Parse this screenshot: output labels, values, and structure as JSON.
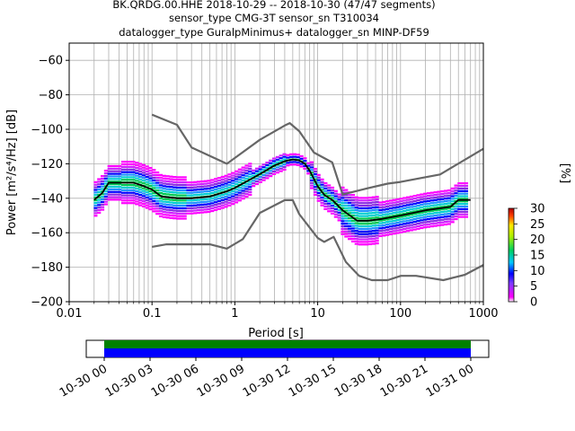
{
  "chart_data": {
    "type": "heatmap",
    "title_lines": [
      "BK.QRDG.00.HHE   2018-10-29 -- 2018-10-30  (47/47 segments)",
      "sensor_type CMG-3T sensor_sn T310034",
      "datalogger_type GuralpMinimus+ datalogger_sn MINP-DF59"
    ],
    "xlabel": "Period [s]",
    "ylabel": "Power [m²/s⁴/Hz] [dB]",
    "xscale": "log",
    "xlim": [
      0.01,
      1000
    ],
    "ylim": [
      -200,
      -50
    ],
    "xticks": [
      0.01,
      0.1,
      1,
      10,
      100,
      1000
    ],
    "xtick_labels": [
      "0.01",
      "0.1",
      "1",
      "10",
      "100",
      "1000"
    ],
    "yticks": [
      -200,
      -180,
      -160,
      -140,
      -120,
      -100,
      -80,
      -60
    ],
    "ytick_labels": [
      "−200",
      "−180",
      "−160",
      "−140",
      "−120",
      "−100",
      "−80",
      "−60"
    ],
    "grid": true,
    "colorbar": {
      "label": "[%]",
      "range": [
        0,
        30
      ],
      "ticks": [
        0,
        5,
        10,
        15,
        20,
        25,
        30
      ],
      "tick_labels": [
        "0",
        "5",
        "10",
        "15",
        "20",
        "25",
        "30"
      ]
    },
    "series": [
      {
        "name": "",
        "color": "#666666",
        "x": [
          0.1,
          0.2,
          0.3,
          0.8,
          2,
          4,
          4.6,
          6,
          9,
          15,
          20,
          40,
          70,
          100,
          300,
          1000
        ],
        "y": [
          -91.5,
          -97.4,
          -110.5,
          -120,
          -106.1,
          -97.8,
          -96.4,
          -101.1,
          -113.5,
          -119.2,
          -137.8,
          -134.2,
          -131.5,
          -130.5,
          -126.2,
          -111.3
        ]
      },
      {
        "name": "",
        "color": "#666666",
        "x": [
          0.1,
          0.15,
          0.2,
          0.5,
          0.8,
          1.25,
          2,
          4,
          5,
          6,
          10,
          12,
          15.6,
          21.9,
          31.6,
          45,
          70,
          101,
          154,
          328,
          600,
          1000
        ],
        "y": [
          -168.2,
          -166.7,
          -166.7,
          -166.7,
          -169.2,
          -163.7,
          -148.5,
          -141.1,
          -141.1,
          -149.2,
          -163,
          -165.3,
          -162.4,
          -177,
          -185,
          -187.5,
          -187.5,
          -185,
          -185,
          -187.5,
          -184.4,
          -178.7
        ]
      },
      {
        "name": "",
        "color": "#000000",
        "x": [
          0.02,
          0.025,
          0.03,
          0.04,
          0.06,
          0.08,
          0.1,
          0.13,
          0.2,
          0.3,
          0.5,
          0.8,
          1,
          2,
          3,
          4,
          5,
          6,
          7,
          8,
          10,
          12,
          15,
          20,
          30,
          40,
          60,
          100,
          200,
          400,
          500,
          700
        ],
        "y": [
          -141,
          -137,
          -131,
          -131,
          -131,
          -133,
          -135,
          -139,
          -140,
          -140,
          -139,
          -136,
          -134,
          -126,
          -121,
          -118.5,
          -117.5,
          -118,
          -120,
          -124,
          -133,
          -138,
          -141,
          -147,
          -153,
          -153,
          -152,
          -150,
          -147,
          -145,
          -141,
          -141
        ]
      }
    ],
    "timeline": {
      "tick_labels": [
        "10-30 00",
        "10-30 03",
        "10-30 06",
        "10-30 09",
        "10-30 12",
        "10-30 15",
        "10-30 18",
        "10-30 21",
        "10-31 00"
      ],
      "bar_colors": [
        "#008000",
        "#0000ff"
      ]
    }
  }
}
